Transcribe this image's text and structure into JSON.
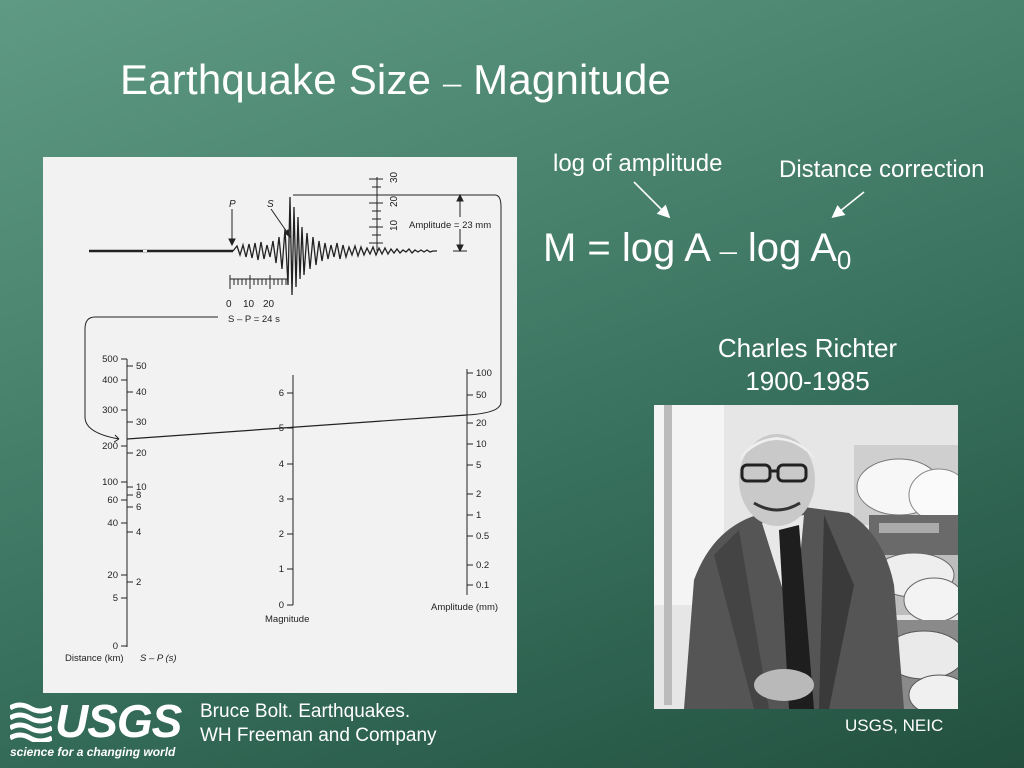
{
  "slide": {
    "title_main": "Earthquake Size",
    "title_dash": "–",
    "title_rest": "Magnitude",
    "label_log_amplitude": "log of amplitude",
    "label_distance_correction": "Distance correction",
    "equation": {
      "lhs": "M = log A",
      "dash": "–",
      "rhs": "log A",
      "subscript": "0"
    },
    "person_name": "Charles Richter",
    "person_years": "1900-1985",
    "credit_line1": "Bruce Bolt. Earthquakes.",
    "credit_line2": "WH Freeman and Company",
    "photo_credit": "USGS, NEIC",
    "logo_text": "USGS",
    "logo_tagline": "science for a changing world"
  },
  "figure": {
    "p_label": "P",
    "s_label": "S",
    "amplitude_label": "Amplitude = 23 mm",
    "sp_scale_ticks": [
      "0",
      "10",
      "20"
    ],
    "sp_label": "S – P = 24 s",
    "amp_scale_ticks": [
      "10",
      "20",
      "30"
    ],
    "distance_ticks": [
      "500",
      "400",
      "300",
      "200",
      "100",
      "60",
      "40",
      "20",
      "5",
      "0"
    ],
    "sp_ticks": [
      "50",
      "40",
      "30",
      "20",
      "10",
      "8",
      "6",
      "4",
      "2"
    ],
    "distance_axis_label": "Distance (km)",
    "sp_axis_label": "S – P (s)",
    "magnitude_ticks": [
      "6",
      "5",
      "4",
      "3",
      "2",
      "1",
      "0"
    ],
    "magnitude_axis_label": "Magnitude",
    "amplitude_ticks": [
      "100",
      "50",
      "20",
      "10",
      "5",
      "2",
      "1",
      "0.5",
      "0.2",
      "0.1"
    ],
    "amplitude_axis_label": "Amplitude (mm)"
  },
  "colors": {
    "background": "#4c8670",
    "text": "#ffffff",
    "panel": "#f2f2f2"
  }
}
